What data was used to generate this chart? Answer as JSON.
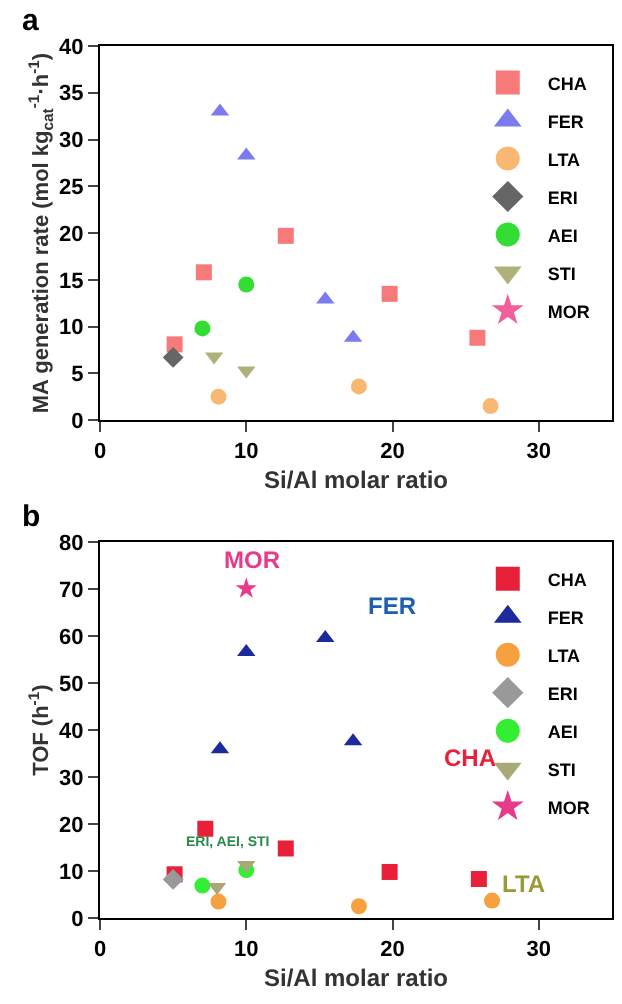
{
  "chart_data": [
    {
      "type": "scatter",
      "title": "a",
      "xlabel": "Si/Al molar ratio",
      "ylabel": "MA generation rate (mol kg$_{cat}$$^{-1}$·h$^{-1}$)",
      "xlim": [
        0,
        35
      ],
      "xticks": [
        0,
        10,
        20,
        30
      ],
      "ylim": [
        0,
        40
      ],
      "yticks": [
        0,
        5,
        10,
        15,
        20,
        25,
        30,
        35,
        40
      ],
      "legend": "top right",
      "series": [
        {
          "name": "CHA",
          "color": "#f77a7a",
          "marker": "square",
          "x": [
            5.1,
            7.1,
            12.7,
            19.8,
            25.8
          ],
          "values": [
            8.1,
            15.8,
            19.7,
            13.5,
            8.8
          ]
        },
        {
          "name": "FER",
          "color": "#7b7bef",
          "marker": "triangle",
          "x": [
            8.2,
            10,
            15.4,
            17.3
          ],
          "values": [
            33,
            28.3,
            12.9,
            8.8
          ]
        },
        {
          "name": "LTA",
          "color": "#f9b774",
          "marker": "circle",
          "x": [
            8.1,
            17.7,
            26.7
          ],
          "values": [
            2.5,
            3.6,
            1.5
          ]
        },
        {
          "name": "ERI",
          "color": "#666666",
          "marker": "diamond",
          "x": [
            5
          ],
          "values": [
            6.7
          ]
        },
        {
          "name": "AEI",
          "color": "#33dd33",
          "marker": "circle",
          "x": [
            7,
            10
          ],
          "values": [
            9.8,
            14.5
          ]
        },
        {
          "name": "STI",
          "color": "#b0b07a",
          "marker": "triangle-down",
          "x": [
            7.8,
            10
          ],
          "values": [
            6.8,
            5.3
          ]
        },
        {
          "name": "MOR",
          "color": "#f0609a",
          "marker": "star",
          "x": [
            null
          ],
          "values": [
            null
          ]
        }
      ]
    },
    {
      "type": "scatter",
      "title": "b",
      "xlabel": "Si/Al molar ratio",
      "ylabel": "TOF (h$^{-1}$)",
      "xlim": [
        0,
        35
      ],
      "xticks": [
        0,
        10,
        20,
        30
      ],
      "ylim": [
        0,
        80
      ],
      "yticks": [
        0,
        10,
        20,
        30,
        40,
        50,
        60,
        70,
        80
      ],
      "legend": "top right",
      "series": [
        {
          "name": "CHA",
          "color": "#e8203a",
          "marker": "square",
          "x": [
            5.1,
            7.2,
            12.7,
            19.8,
            25.9
          ],
          "values": [
            9.3,
            19,
            14.8,
            9.8,
            8.3
          ]
        },
        {
          "name": "FER",
          "color": "#1c2a9c",
          "marker": "triangle",
          "x": [
            8.2,
            10,
            15.4,
            17.3
          ],
          "values": [
            35.9,
            56.6,
            59.6,
            37.6
          ]
        },
        {
          "name": "LTA",
          "color": "#f7a040",
          "marker": "circle",
          "x": [
            8.1,
            17.7,
            26.8
          ],
          "values": [
            3.5,
            2.5,
            3.7
          ]
        },
        {
          "name": "ERI",
          "color": "#999999",
          "marker": "diamond",
          "x": [
            5
          ],
          "values": [
            8.2
          ]
        },
        {
          "name": "AEI",
          "color": "#33ee33",
          "marker": "circle",
          "x": [
            7,
            10
          ],
          "values": [
            6.9,
            10.2
          ]
        },
        {
          "name": "STI",
          "color": "#a8a878",
          "marker": "triangle-down",
          "x": [
            8,
            10
          ],
          "values": [
            6.6,
            11.3
          ]
        },
        {
          "name": "MOR",
          "color": "#e83a8a",
          "marker": "star",
          "x": [
            10
          ],
          "values": [
            70.1
          ]
        }
      ],
      "annotations": [
        "MOR",
        "FER",
        "CHA",
        "LTA",
        "ERI, AEI, STI"
      ]
    }
  ]
}
